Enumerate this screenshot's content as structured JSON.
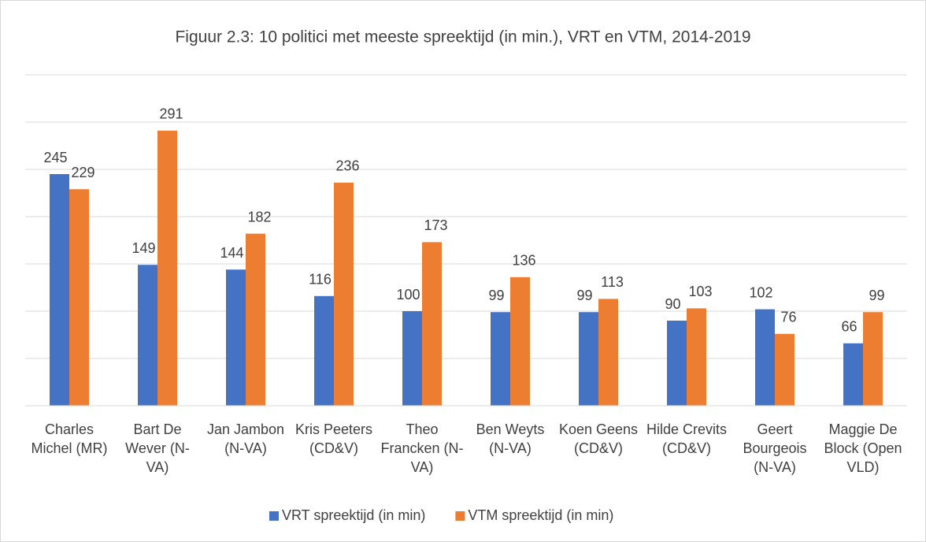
{
  "chart_data": {
    "type": "bar",
    "title": "Figuur 2.3: 10 politici met meeste spreektijd (in min.), VRT en VTM, 2014-2019",
    "categories": [
      "Charles Michel (MR)",
      "Bart De Wever (N-VA)",
      "Jan Jambon (N-VA)",
      "Kris Peeters (CD&V)",
      "Theo Francken (N-VA)",
      "Ben Weyts (N-VA)",
      "Koen Geens (CD&V)",
      "Hilde Crevits (CD&V)",
      "Geert Bourgeois (N-VA)",
      "Maggie De Block (Open VLD)"
    ],
    "series": [
      {
        "name": "VRT spreektijd (in min)",
        "color": "#4472c4",
        "values": [
          245,
          149,
          144,
          116,
          100,
          99,
          99,
          90,
          102,
          66
        ]
      },
      {
        "name": "VTM spreektijd (in min)",
        "color": "#ed7d31",
        "values": [
          229,
          291,
          182,
          236,
          173,
          136,
          113,
          103,
          76,
          99
        ]
      }
    ],
    "ylim": [
      0,
      350
    ],
    "yticks": [
      0,
      50,
      100,
      150,
      200,
      250,
      300,
      350
    ],
    "grid": true,
    "legend": "bottom"
  }
}
